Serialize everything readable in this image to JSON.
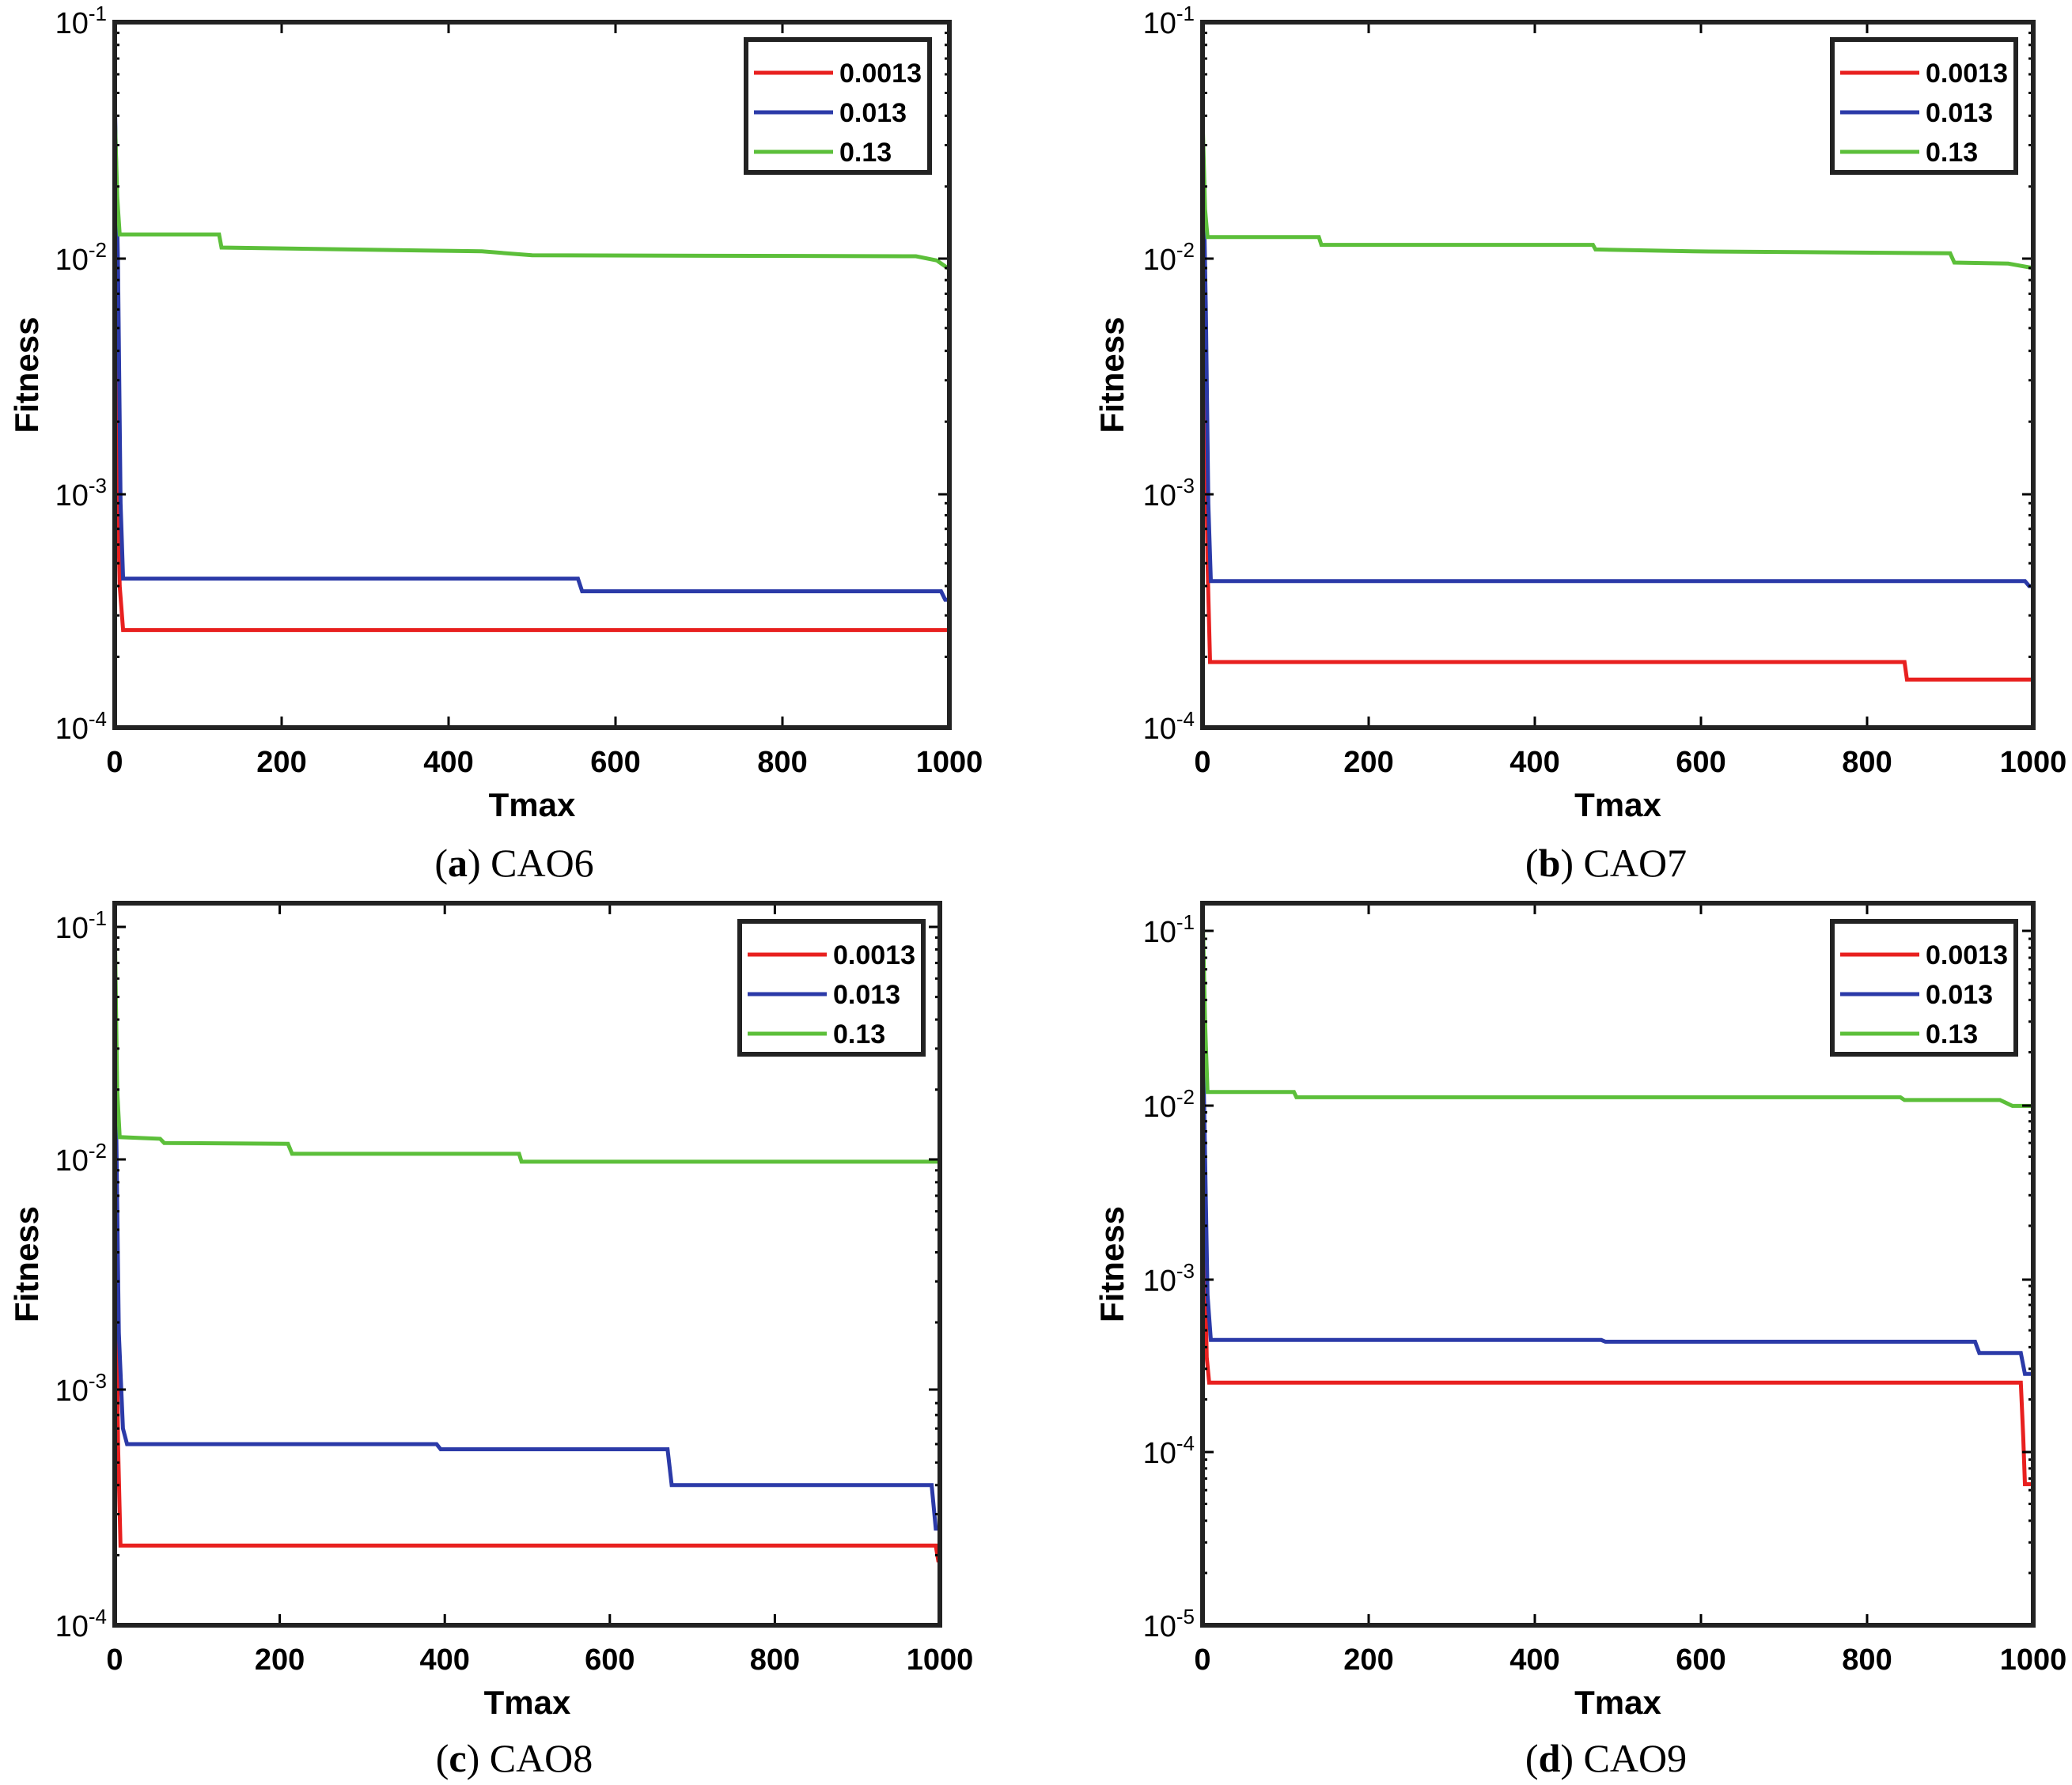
{
  "chart_data": [
    {
      "type": "line",
      "panel_label": "a",
      "caption": "CAO6",
      "xlabel": "Tmax",
      "ylabel": "Fitness",
      "yscale": "log",
      "xlim": [
        0,
        1000
      ],
      "ylim": [
        0.0001,
        0.1
      ],
      "xticks": [
        "0",
        "200",
        "400",
        "600",
        "800",
        "1000"
      ],
      "yticks": [
        {
          "base": "10",
          "exp": "-1"
        },
        {
          "base": "10",
          "exp": "-2"
        },
        {
          "base": "10",
          "exp": "-3"
        },
        {
          "base": "10",
          "exp": "-4"
        }
      ],
      "legend": [
        "0.0013",
        "0.013",
        "0.13"
      ],
      "series": [
        {
          "name": "0.0013",
          "color": "#e8201f",
          "points": [
            [
              0,
              0.04
            ],
            [
              3,
              0.0012
            ],
            [
              6,
              0.0004
            ],
            [
              10,
              0.00026
            ],
            [
              1000,
              0.00026
            ]
          ]
        },
        {
          "name": "0.013",
          "color": "#2b3aa8",
          "points": [
            [
              0,
              0.05
            ],
            [
              4,
              0.009
            ],
            [
              7,
              0.0009
            ],
            [
              10,
              0.00043
            ],
            [
              555,
              0.00043
            ],
            [
              560,
              0.00038
            ],
            [
              990,
              0.00038
            ],
            [
              995,
              0.00035
            ],
            [
              1000,
              0.00035
            ]
          ]
        },
        {
          "name": "0.13",
          "color": "#5cbf3a",
          "points": [
            [
              0,
              0.042
            ],
            [
              3,
              0.018
            ],
            [
              6,
              0.0125
            ],
            [
              125,
              0.0125
            ],
            [
              128,
              0.011
            ],
            [
              440,
              0.0106
            ],
            [
              500,
              0.0102
            ],
            [
              960,
              0.0101
            ],
            [
              985,
              0.0097
            ],
            [
              1000,
              0.0089
            ]
          ]
        }
      ]
    },
    {
      "type": "line",
      "panel_label": "b",
      "caption": "CAO7",
      "xlabel": "Tmax",
      "ylabel": "Fitness",
      "yscale": "log",
      "xlim": [
        0,
        1000
      ],
      "ylim": [
        0.0001,
        0.1
      ],
      "xticks": [
        "0",
        "200",
        "400",
        "600",
        "800",
        "1000"
      ],
      "yticks": [
        {
          "base": "10",
          "exp": "-1"
        },
        {
          "base": "10",
          "exp": "-2"
        },
        {
          "base": "10",
          "exp": "-3"
        },
        {
          "base": "10",
          "exp": "-4"
        }
      ],
      "legend": [
        "0.0013",
        "0.013",
        "0.13"
      ],
      "series": [
        {
          "name": "0.0013",
          "color": "#e8201f",
          "points": [
            [
              0,
              0.052
            ],
            [
              3,
              0.003
            ],
            [
              6,
              0.0005
            ],
            [
              9,
              0.00019
            ],
            [
              845,
              0.00019
            ],
            [
              848,
              0.00016
            ],
            [
              1000,
              0.00016
            ]
          ]
        },
        {
          "name": "0.013",
          "color": "#2b3aa8",
          "points": [
            [
              0,
              0.035
            ],
            [
              4,
              0.006
            ],
            [
              7,
              0.0009
            ],
            [
              10,
              0.00042
            ],
            [
              990,
              0.00042
            ],
            [
              995,
              0.0004
            ],
            [
              1000,
              0.0004
            ]
          ]
        },
        {
          "name": "0.13",
          "color": "#5cbf3a",
          "points": [
            [
              0,
              0.04
            ],
            [
              3,
              0.016
            ],
            [
              6,
              0.0122
            ],
            [
              140,
              0.0122
            ],
            [
              143,
              0.0113
            ],
            [
              470,
              0.0113
            ],
            [
              473,
              0.0108
            ],
            [
              590,
              0.0106
            ],
            [
              900,
              0.0104
            ],
            [
              905,
              0.0095
            ],
            [
              970,
              0.0094
            ],
            [
              1000,
              0.009
            ]
          ]
        }
      ]
    },
    {
      "type": "line",
      "panel_label": "c",
      "caption": "CAO8",
      "xlabel": "Tmax",
      "ylabel": "Fitness",
      "yscale": "log",
      "xlim": [
        0,
        1000
      ],
      "ylim": [
        0.0001,
        0.12
      ],
      "xticks": [
        "0",
        "200",
        "400",
        "600",
        "800",
        "1000"
      ],
      "yticks": [
        {
          "base": "10",
          "exp": "-1"
        },
        {
          "base": "10",
          "exp": "-2"
        },
        {
          "base": "10",
          "exp": "-3"
        },
        {
          "base": "10",
          "exp": "-4"
        }
      ],
      "legend": [
        "0.0013",
        "0.013",
        "0.13"
      ],
      "series": [
        {
          "name": "0.0013",
          "color": "#e8201f",
          "points": [
            [
              0,
              0.05
            ],
            [
              2,
              0.003
            ],
            [
              4,
              0.0006
            ],
            [
              7,
              0.00022
            ],
            [
              995,
              0.00022
            ],
            [
              998,
              0.00019
            ],
            [
              1000,
              0.00019
            ]
          ]
        },
        {
          "name": "0.013",
          "color": "#2b3aa8",
          "points": [
            [
              0,
              0.06
            ],
            [
              2,
              0.012
            ],
            [
              5,
              0.0018
            ],
            [
              10,
              0.0007
            ],
            [
              15,
              0.0006
            ],
            [
              390,
              0.0006
            ],
            [
              395,
              0.00057
            ],
            [
              670,
              0.00057
            ],
            [
              675,
              0.0004
            ],
            [
              990,
              0.0004
            ],
            [
              995,
              0.00026
            ],
            [
              1000,
              0.00026
            ]
          ]
        },
        {
          "name": "0.13",
          "color": "#5cbf3a",
          "points": [
            [
              0,
              0.11
            ],
            [
              3,
              0.02
            ],
            [
              6,
              0.0125
            ],
            [
              55,
              0.0123
            ],
            [
              60,
              0.0118
            ],
            [
              210,
              0.0117
            ],
            [
              215,
              0.0106
            ],
            [
              490,
              0.0106
            ],
            [
              493,
              0.0098
            ],
            [
              1000,
              0.0098
            ]
          ]
        }
      ]
    },
    {
      "type": "line",
      "panel_label": "d",
      "caption": "CAO9",
      "xlabel": "Tmax",
      "ylabel": "Fitness",
      "yscale": "log",
      "xlim": [
        0,
        1000
      ],
      "ylim": [
        1e-05,
        0.15
      ],
      "xticks": [
        "0",
        "200",
        "400",
        "600",
        "800",
        "1000"
      ],
      "yticks": [
        {
          "base": "10",
          "exp": "-1"
        },
        {
          "base": "10",
          "exp": "-2"
        },
        {
          "base": "10",
          "exp": "-3"
        },
        {
          "base": "10",
          "exp": "-4"
        },
        {
          "base": "10",
          "exp": "-5"
        }
      ],
      "legend": [
        "0.0013",
        "0.013",
        "0.13"
      ],
      "series": [
        {
          "name": "0.0013",
          "color": "#e8201f",
          "points": [
            [
              0,
              0.04
            ],
            [
              2,
              0.002
            ],
            [
              5,
              0.00035
            ],
            [
              8,
              0.00025
            ],
            [
              985,
              0.00025
            ],
            [
              988,
              0.00012
            ],
            [
              990,
              6.5e-05
            ],
            [
              1000,
              6.5e-05
            ]
          ]
        },
        {
          "name": "0.013",
          "color": "#2b3aa8",
          "points": [
            [
              0,
              0.03
            ],
            [
              3,
              0.005
            ],
            [
              6,
              0.0008
            ],
            [
              10,
              0.00044
            ],
            [
              480,
              0.00044
            ],
            [
              485,
              0.00043
            ],
            [
              930,
              0.00043
            ],
            [
              935,
              0.00037
            ],
            [
              985,
              0.00037
            ],
            [
              990,
              0.00028
            ],
            [
              1000,
              0.00028
            ]
          ]
        },
        {
          "name": "0.13",
          "color": "#5cbf3a",
          "points": [
            [
              0,
              0.14
            ],
            [
              3,
              0.03
            ],
            [
              6,
              0.0118
            ],
            [
              110,
              0.0118
            ],
            [
              113,
              0.011
            ],
            [
              840,
              0.011
            ],
            [
              845,
              0.0106
            ],
            [
              960,
              0.0106
            ],
            [
              975,
              0.0098
            ],
            [
              1000,
              0.0098
            ]
          ]
        }
      ]
    }
  ]
}
